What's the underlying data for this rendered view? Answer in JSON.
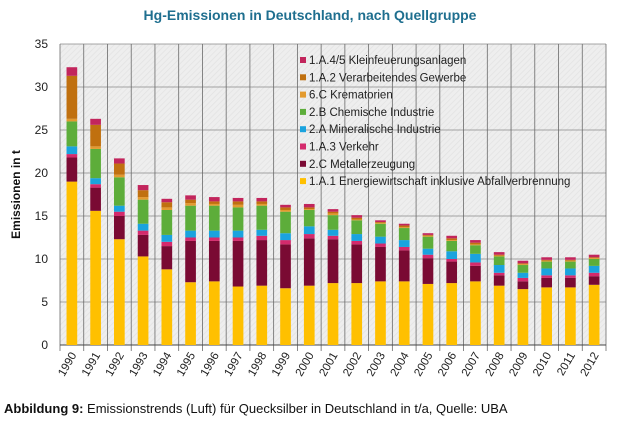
{
  "chart_data": {
    "type": "bar",
    "stacked": true,
    "title": "Hg-Emissionen in Deutschland, nach Quellgruppe",
    "xlabel": "",
    "ylabel": "Emissionen in t",
    "ylim": [
      0,
      35
    ],
    "yticks": [
      0,
      5,
      10,
      15,
      20,
      25,
      30,
      35
    ],
    "grid": true,
    "legend_position": "top-right",
    "categories": [
      "1990",
      "1991",
      "1992",
      "1993",
      "1994",
      "1995",
      "1996",
      "1997",
      "1998",
      "1999",
      "2000",
      "2001",
      "2002",
      "2003",
      "2004",
      "2005",
      "2006",
      "2007",
      "2008",
      "2009",
      "2010",
      "2011",
      "2012"
    ],
    "series": [
      {
        "name": "1.A.1 Energiewirtschaft inklusive Abfallverbrennung",
        "color": "#FFC000",
        "values": [
          19.0,
          15.6,
          12.3,
          10.3,
          8.8,
          7.3,
          7.4,
          6.8,
          6.9,
          6.6,
          6.9,
          7.2,
          7.2,
          7.4,
          7.4,
          7.1,
          7.2,
          7.4,
          6.9,
          6.5,
          6.7,
          6.7,
          7.0
        ]
      },
      {
        "name": "2.C Metallerzeugung",
        "color": "#7A0A33",
        "values": [
          2.8,
          2.7,
          2.7,
          2.5,
          2.7,
          4.8,
          4.7,
          5.3,
          5.3,
          5.1,
          5.5,
          5.1,
          4.5,
          4.0,
          3.6,
          3.0,
          2.5,
          1.8,
          1.2,
          0.9,
          1.1,
          1.1,
          1.0
        ]
      },
      {
        "name": "1.A.3 Verkehr",
        "color": "#D42A6C",
        "values": [
          0.4,
          0.4,
          0.5,
          0.5,
          0.5,
          0.4,
          0.4,
          0.4,
          0.5,
          0.5,
          0.5,
          0.4,
          0.4,
          0.4,
          0.4,
          0.4,
          0.3,
          0.4,
          0.3,
          0.4,
          0.3,
          0.3,
          0.4
        ]
      },
      {
        "name": "2.A Mineralische Industrie",
        "color": "#1AA3DE",
        "values": [
          0.9,
          0.7,
          0.7,
          0.8,
          0.8,
          0.8,
          0.8,
          0.8,
          0.7,
          0.8,
          0.9,
          0.7,
          0.8,
          0.8,
          0.8,
          0.7,
          0.9,
          1.0,
          0.9,
          0.6,
          0.8,
          0.8,
          0.8
        ]
      },
      {
        "name": "2.B Chemische Industrie",
        "color": "#5DAD3A",
        "values": [
          2.9,
          3.4,
          3.3,
          2.8,
          2.9,
          2.9,
          2.9,
          2.7,
          2.8,
          2.5,
          1.9,
          1.7,
          1.6,
          1.5,
          1.4,
          1.4,
          1.2,
          1.0,
          1.0,
          0.9,
          0.8,
          0.8,
          0.8
        ]
      },
      {
        "name": "6.C Krematorien",
        "color": "#E39A2E",
        "values": [
          0.3,
          0.3,
          0.3,
          0.3,
          0.3,
          0.3,
          0.2,
          0.3,
          0.2,
          0.2,
          0.1,
          0.2,
          0.1,
          0.1,
          0.1,
          0.1,
          0.1,
          0.1,
          0.1,
          0.1,
          0.1,
          0.1,
          0.1
        ]
      },
      {
        "name": "1.A.2 Verarbeitendes Gewerbe",
        "color": "#C0700F",
        "values": [
          5.0,
          2.5,
          1.3,
          0.8,
          0.6,
          0.4,
          0.3,
          0.4,
          0.3,
          0.3,
          0.2,
          0.2,
          0.2,
          0.1,
          0.2,
          0.1,
          0.2,
          0.2,
          0.1,
          0.1,
          0.1,
          0.1,
          0.1
        ]
      },
      {
        "name": "1.A.4/5 Kleinfeuerungsanlagen",
        "color": "#C2255C",
        "values": [
          1.0,
          0.7,
          0.6,
          0.6,
          0.4,
          0.5,
          0.5,
          0.4,
          0.4,
          0.3,
          0.4,
          0.3,
          0.3,
          0.2,
          0.2,
          0.2,
          0.3,
          0.3,
          0.3,
          0.3,
          0.3,
          0.3,
          0.3
        ]
      }
    ]
  },
  "caption": {
    "label": "Abbildung 9:",
    "text": " Emissionstrends (Luft) für Quecksilber in Deutschland in t/a, Quelle: UBA"
  }
}
